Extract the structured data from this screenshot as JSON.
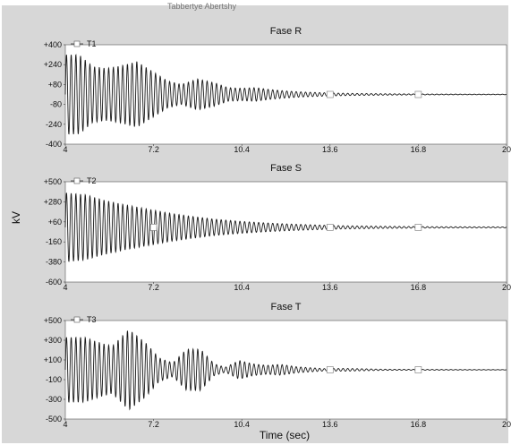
{
  "header_text": "Tabbertye Abertshy",
  "shared_ylabel": "kV",
  "shared_xlabel": "Time (sec)",
  "chart_data": [
    {
      "type": "line",
      "title": "Fase R",
      "legend": "T1",
      "xlim": [
        4,
        20
      ],
      "xticks": [
        "4",
        "7.2",
        "10.4",
        "13.6",
        "16.8",
        "20"
      ],
      "ylim": [
        -400,
        400
      ],
      "yticks": [
        "+400",
        "+240",
        "+80",
        "-80",
        "-240",
        "-400"
      ],
      "xlabel": "",
      "ylabel": "",
      "marker_x": [
        13.6,
        16.8
      ],
      "color": "#1a1a1a",
      "envelope": {
        "t": [
          4,
          4.5,
          5,
          5.5,
          6,
          6.6,
          7.2,
          7.7,
          8.2,
          8.8,
          9.4,
          9.9,
          10.4,
          10.9,
          11.4,
          12,
          12.6,
          13.6,
          14.5,
          16,
          17.5,
          20
        ],
        "a": [
          320,
          320,
          225,
          210,
          230,
          265,
          180,
          110,
          80,
          125,
          95,
          55,
          50,
          55,
          40,
          28,
          20,
          12,
          8,
          5,
          3,
          2
        ]
      }
    },
    {
      "type": "line",
      "title": "Fase S",
      "legend": "T2",
      "xlim": [
        4,
        20
      ],
      "xticks": [
        "4",
        "7.2",
        "10.4",
        "13.6",
        "16.8",
        "20"
      ],
      "ylim": [
        -600,
        500
      ],
      "yticks": [
        "+500",
        "+280",
        "+60",
        "-160",
        "-380",
        "-600"
      ],
      "xlabel": "",
      "ylabel": "",
      "marker_x": [
        7.2,
        13.6,
        16.8
      ],
      "color": "#1a1a1a",
      "envelope": {
        "t": [
          4,
          4.7,
          5.4,
          6.2,
          7,
          7.8,
          8.6,
          9.4,
          10.4,
          11.2,
          12,
          13,
          14,
          15.5,
          17,
          20
        ],
        "a": [
          380,
          360,
          300,
          245,
          200,
          155,
          120,
          90,
          65,
          50,
          38,
          27,
          18,
          12,
          8,
          5
        ]
      }
    },
    {
      "type": "line",
      "title": "Fase T",
      "legend": "T3",
      "xlim": [
        4,
        20
      ],
      "xticks": [
        "4",
        "7.2",
        "10.4",
        "13.6",
        "16.8",
        "20"
      ],
      "ylim": [
        -500,
        500
      ],
      "yticks": [
        "+500",
        "+300",
        "+100",
        "-100",
        "-300",
        "-500"
      ],
      "xlabel": "",
      "ylabel": "",
      "marker_x": [
        13.6,
        16.8
      ],
      "color": "#1a1a1a",
      "envelope": {
        "t": [
          4,
          4.7,
          5.2,
          5.7,
          6.3,
          6.9,
          7.4,
          7.9,
          8.4,
          8.9,
          9.4,
          9.8,
          10.3,
          10.8,
          11.3,
          11.8,
          12.4,
          13.4,
          14.2,
          15.5,
          17,
          20
        ],
        "a": [
          330,
          330,
          280,
          240,
          410,
          280,
          120,
          70,
          210,
          210,
          60,
          25,
          95,
          60,
          45,
          55,
          30,
          12,
          14,
          6,
          4,
          2
        ]
      }
    }
  ]
}
